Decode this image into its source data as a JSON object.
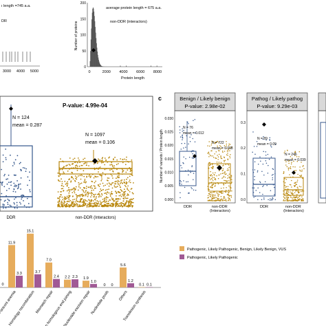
{
  "panel_top_left": {
    "note": "ı length =745 a.a.",
    "series_label": "DR",
    "ticks": [
      "3000",
      "4000",
      "5000"
    ]
  },
  "panel_top_right": {
    "avg_note": "average protein length = 675 a.a.",
    "series_label": "non-DDR (interactors)",
    "ylabel": "Number of proteins",
    "xlabel": "Protein length",
    "xticks": [
      "0",
      "2000",
      "4000",
      "6000",
      "8000"
    ],
    "yticks": [
      "0",
      "50",
      "100",
      "150",
      "200"
    ]
  },
  "panel_b": {
    "pvalue": "P-value: 4.99e-04",
    "ddr_n": "N = 124",
    "ddr_mean": "mean = 0.287",
    "nonddr_n": "N = 1097",
    "nonddr_mean": "mean = 0.106",
    "xtick_ddr": "DDR",
    "xtick_nonddr": "non-DDR (Interactors)"
  },
  "panel_c": {
    "letter": "c",
    "ylabel": "Number of variants / Protein length",
    "facets": [
      {
        "title": "Benign / Likely benign",
        "pvalue": "P-value: 2.98e-02",
        "ddr_n": "N = 76",
        "ddr_mean": "mean = 0.012",
        "nonddr_n": "N = 722",
        "nonddr_mean": "mean = 0.008",
        "yticks": [
          "0.000",
          "0.005",
          "0.010",
          "0.015",
          "0.020",
          "0.025",
          "0.030"
        ],
        "xtick_ddr": "DDR",
        "xtick_nonddr": "non-DDR\n(Interactors)"
      },
      {
        "title": "Pathog / Likely pathog",
        "pvalue": "P-value: 9.29e-03",
        "ddr_n": "N = 89",
        "ddr_mean": "mean = 0.09",
        "nonddr_n": "N = 246",
        "nonddr_mean": "mean = 0.039",
        "yticks": [
          "0.0",
          "0.1",
          "0.2",
          "0.3"
        ],
        "xtick_ddr": "DDR",
        "xtick_nonddr": "non-DDR\n(Interactors)"
      }
    ]
  },
  "colors": {
    "ddr": "#34568b",
    "nonddr": "#b8860b",
    "bar_gold": "#e6ac5c",
    "bar_purple": "#a05a95",
    "facet_header": "#d9d9d9"
  },
  "chart_data": [
    {
      "type": "bar",
      "title": "",
      "categories": [
        "Fanconi anemia",
        "Homology recombination",
        "Mismatch repair",
        "Non homologous end joining",
        "Nucleotide excision repair",
        "Nucleotide pools",
        "Others",
        "Translesion synthesis"
      ],
      "tick_labels": [
        "Fanconi anemia",
        "Homology recombination",
        "Mismatch repair",
        "Non homologous end joining",
        "Nucleotide excision repair",
        "Nucleotide pools",
        "Others",
        "Translesion synthesis"
      ],
      "leading_values": [
        "0"
      ],
      "series": [
        {
          "name": "Pathogenic, Likely Pathogenic, Benign, Likely Benign, VUS",
          "values": [
            11.9,
            15.1,
            7.0,
            2.2,
            1.9,
            0,
            5.6,
            0.1
          ]
        },
        {
          "name": "Pathogenic, Likely Pathogenic",
          "values": [
            3.3,
            3.7,
            2.4,
            2.3,
            1.0,
            0,
            1.2,
            0.1
          ]
        }
      ],
      "value_labels": [
        [
          "11.9",
          "15.1",
          "7.0",
          "2.2",
          "1.9",
          "0",
          "5.6",
          "0.1"
        ],
        [
          "3.3",
          "3.7",
          "2.4",
          "2.3",
          "1.0",
          "0",
          "1.2",
          "0.1"
        ]
      ],
      "ylim": [
        0,
        16
      ],
      "legend": "right"
    }
  ]
}
